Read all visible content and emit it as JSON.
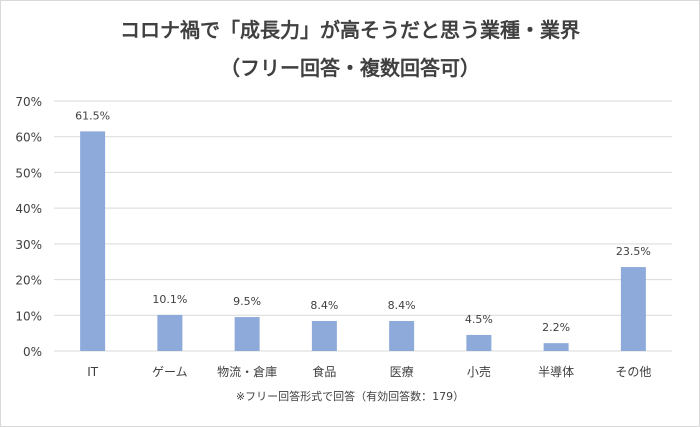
{
  "title_line1": "コロナ禍で「成長力」が高そうだと思う業種・業界",
  "title_line2": "（フリー回答・複数回答可）",
  "footnote": "※フリー回答形式で回答（有効回答数：179）",
  "colors": {
    "bar": "#8eaadb",
    "grid": "#d9d9d9",
    "text": "#404040"
  },
  "chart_data": {
    "type": "bar",
    "title": "コロナ禍で「成長力」が高そうだと思う業種・業界（フリー回答・複数回答可）",
    "categories": [
      "IT",
      "ゲーム",
      "物流・倉庫",
      "食品",
      "医療",
      "小売",
      "半導体",
      "その他"
    ],
    "values": [
      61.5,
      10.1,
      9.5,
      8.4,
      8.4,
      4.5,
      2.2,
      23.5
    ],
    "value_labels": [
      "61.5%",
      "10.1%",
      "9.5%",
      "8.4%",
      "8.4%",
      "4.5%",
      "2.2%",
      "23.5%"
    ],
    "ylim": [
      0,
      70
    ],
    "yticks": [
      0,
      10,
      20,
      30,
      40,
      50,
      60,
      70
    ],
    "ytick_labels": [
      "0%",
      "10%",
      "20%",
      "30%",
      "40%",
      "50%",
      "60%",
      "70%"
    ],
    "xlabel": "",
    "ylabel": "",
    "grid": true,
    "legend": "none"
  }
}
